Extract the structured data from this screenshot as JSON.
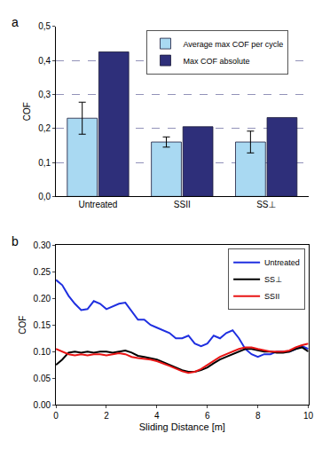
{
  "chart_data": [
    {
      "type": "bar",
      "title": "a",
      "y_label": "COF",
      "categories": [
        "Untreated",
        "SSII",
        "SS⊥"
      ],
      "series": [
        {
          "name": "Average max COF per cycle",
          "color": "#a9d9f2",
          "values": [
            0.23,
            0.16,
            0.16
          ],
          "errors": [
            0.047,
            0.015,
            0.032
          ]
        },
        {
          "name": "Max COF absolute",
          "color": "#2e2f7a",
          "values": [
            0.425,
            0.205,
            0.232
          ]
        }
      ],
      "ylim": [
        0,
        0.5
      ],
      "yticks": [
        {
          "value": 0,
          "label": "0,0"
        },
        {
          "value": 0.1,
          "label": "0,1"
        },
        {
          "value": 0.2,
          "label": "0,2"
        },
        {
          "value": 0.3,
          "label": "0,3"
        },
        {
          "value": 0.4,
          "label": "0,4"
        },
        {
          "value": 0.5,
          "label": "0,5"
        }
      ],
      "grid": true,
      "legend": "top"
    },
    {
      "type": "line",
      "title": "b",
      "x_label": "Sliding Distance [m]",
      "y_label": "COF",
      "x": [
        0,
        0.25,
        0.5,
        0.75,
        1,
        1.25,
        1.5,
        1.75,
        2,
        2.25,
        2.5,
        2.75,
        3,
        3.25,
        3.5,
        3.75,
        4,
        4.25,
        4.5,
        4.75,
        5,
        5.25,
        5.5,
        5.75,
        6,
        6.25,
        6.5,
        6.75,
        7,
        7.25,
        7.5,
        7.75,
        8,
        8.25,
        8.5,
        8.75,
        9,
        9.25,
        9.5,
        9.75,
        10
      ],
      "series": [
        {
          "name": "Untreated",
          "color": "#1f2fe0",
          "values": [
            0.235,
            0.225,
            0.205,
            0.19,
            0.178,
            0.18,
            0.195,
            0.19,
            0.18,
            0.185,
            0.19,
            0.192,
            0.175,
            0.16,
            0.16,
            0.15,
            0.145,
            0.14,
            0.135,
            0.125,
            0.125,
            0.13,
            0.115,
            0.11,
            0.115,
            0.13,
            0.125,
            0.135,
            0.14,
            0.125,
            0.105,
            0.095,
            0.09,
            0.095,
            0.095,
            0.1,
            0.1,
            0.1,
            0.105,
            0.11,
            0.105
          ]
        },
        {
          "name": "SS⊥",
          "color": "#000000",
          "values": [
            0.075,
            0.085,
            0.098,
            0.1,
            0.098,
            0.1,
            0.098,
            0.1,
            0.1,
            0.098,
            0.1,
            0.102,
            0.098,
            0.092,
            0.09,
            0.088,
            0.085,
            0.08,
            0.075,
            0.07,
            0.065,
            0.062,
            0.062,
            0.065,
            0.07,
            0.078,
            0.085,
            0.09,
            0.095,
            0.1,
            0.105,
            0.105,
            0.103,
            0.1,
            0.1,
            0.098,
            0.098,
            0.1,
            0.105,
            0.108,
            0.1
          ]
        },
        {
          "name": "SSII",
          "color": "#e81414",
          "values": [
            0.105,
            0.1,
            0.095,
            0.093,
            0.095,
            0.093,
            0.095,
            0.095,
            0.093,
            0.095,
            0.097,
            0.095,
            0.09,
            0.088,
            0.087,
            0.085,
            0.082,
            0.078,
            0.073,
            0.068,
            0.063,
            0.06,
            0.062,
            0.067,
            0.075,
            0.082,
            0.09,
            0.095,
            0.1,
            0.105,
            0.108,
            0.108,
            0.105,
            0.102,
            0.1,
            0.1,
            0.1,
            0.102,
            0.108,
            0.112,
            0.115
          ]
        }
      ],
      "xlim": [
        0,
        10
      ],
      "xticks": [
        0,
        2,
        4,
        6,
        8,
        10
      ],
      "ylim": [
        0,
        0.3
      ],
      "yticks": [
        {
          "value": 0,
          "label": "0.00"
        },
        {
          "value": 0.05,
          "label": "0.05"
        },
        {
          "value": 0.1,
          "label": "0.10"
        },
        {
          "value": 0.15,
          "label": "0.15"
        },
        {
          "value": 0.2,
          "label": "0.20"
        },
        {
          "value": 0.25,
          "label": "0.25"
        },
        {
          "value": 0.3,
          "label": "0.30"
        }
      ],
      "grid": false,
      "legend": "top right"
    }
  ]
}
